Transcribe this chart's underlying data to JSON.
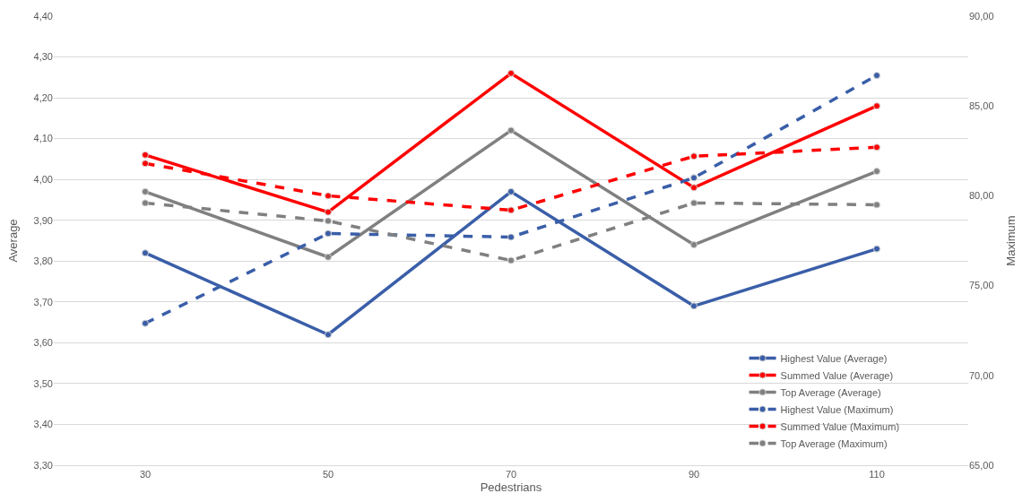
{
  "chart_data": {
    "type": "line",
    "xlabel": "Pedestrians",
    "ylabel": "Average",
    "y2label": "Maximum",
    "categories": [
      "30",
      "50",
      "70",
      "90",
      "110"
    ],
    "ylim": [
      3.3,
      4.4
    ],
    "yticks": [
      {
        "value": 3.3,
        "label": "3,30"
      },
      {
        "value": 3.4,
        "label": "3,40"
      },
      {
        "value": 3.5,
        "label": "3,50"
      },
      {
        "value": 3.6,
        "label": "3,60"
      },
      {
        "value": 3.7,
        "label": "3,70"
      },
      {
        "value": 3.8,
        "label": "3,80"
      },
      {
        "value": 3.9,
        "label": "3,90"
      },
      {
        "value": 4.0,
        "label": "4,00"
      },
      {
        "value": 4.1,
        "label": "4,10"
      },
      {
        "value": 4.2,
        "label": "4,20"
      },
      {
        "value": 4.3,
        "label": "4,30"
      },
      {
        "value": 4.4,
        "label": "4,40"
      }
    ],
    "y2lim": [
      65,
      90
    ],
    "y2ticks": [
      {
        "value": 65,
        "label": "65,00"
      },
      {
        "value": 70,
        "label": "70,00"
      },
      {
        "value": 75,
        "label": "75,00"
      },
      {
        "value": 80,
        "label": "80,00"
      },
      {
        "value": 85,
        "label": "85,00"
      },
      {
        "value": 90,
        "label": "90,00"
      }
    ],
    "grid": "y",
    "legend": "bottom right",
    "marker": "circle",
    "series": [
      {
        "name": "Highest Value (Average)",
        "color": "#3a5ea8",
        "values": [
          3.82,
          3.62,
          3.97,
          3.69,
          3.83
        ]
      },
      {
        "name": "Summed Value (Average)",
        "color": "#ff0000",
        "values": [
          4.06,
          3.92,
          4.26,
          3.98,
          4.18
        ]
      },
      {
        "name": "Top Average (Average)",
        "color": "#808080",
        "values": [
          3.97,
          3.81,
          4.12,
          3.84,
          4.02
        ]
      },
      {
        "name": "Highest Value (Maximum)",
        "color": "#3a5ea8",
        "axis": "y2",
        "line_style": "dashed",
        "values": [
          72.9,
          77.9,
          77.7,
          81.0,
          86.7
        ]
      },
      {
        "name": "Summed Value (Maximum)",
        "color": "#ff0000",
        "axis": "y2",
        "line_style": "dashed",
        "values": [
          81.8,
          80.0,
          79.2,
          82.2,
          82.7
        ]
      },
      {
        "name": "Top Average (Maximum)",
        "color": "#808080",
        "axis": "y2",
        "line_style": "dashed",
        "values": [
          79.6,
          78.6,
          76.4,
          79.6,
          79.5
        ]
      }
    ]
  }
}
